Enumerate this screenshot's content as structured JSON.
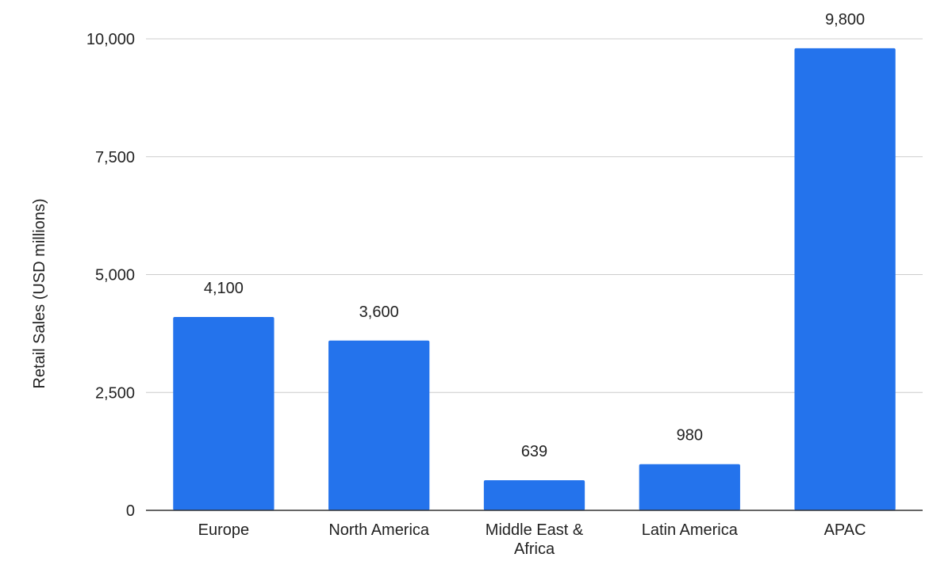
{
  "chart_data": {
    "type": "bar",
    "categories": [
      "Europe",
      "North America",
      "Middle East & Africa",
      "Latin America",
      "APAC"
    ],
    "category_lines": [
      [
        "Europe"
      ],
      [
        "North America"
      ],
      [
        "Middle East &",
        "Africa"
      ],
      [
        "Latin America"
      ],
      [
        "APAC"
      ]
    ],
    "values": [
      4100,
      3600,
      639,
      980,
      9800
    ],
    "data_labels": [
      "4,100",
      "3,600",
      "639",
      "980",
      "9,800"
    ],
    "ylabel": "Retail Sales (USD millions)",
    "xlabel": "",
    "ylim": [
      0,
      10000
    ],
    "yticks": [
      0,
      2500,
      5000,
      7500,
      10000
    ],
    "ytick_labels": [
      "0",
      "2,500",
      "5,000",
      "7,500",
      "10,000"
    ],
    "grid": true,
    "bar_color": "#2473ec",
    "grid_color": "#cccccc",
    "axis_color": "#333333"
  }
}
